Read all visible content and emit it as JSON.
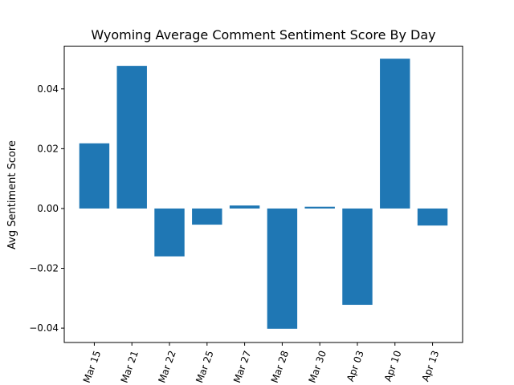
{
  "chart_data": {
    "type": "bar",
    "title": "Wyoming Average Comment Sentiment Score By Day",
    "xlabel": "",
    "ylabel": "Avg Sentiment Score",
    "categories": [
      "Mar 15",
      "Mar 21",
      "Mar 22",
      "Mar 25",
      "Mar 27",
      "Mar 28",
      "Mar 30",
      "Apr 03",
      "Apr 10",
      "Apr 13"
    ],
    "values": [
      0.0218,
      0.0477,
      -0.016,
      -0.0054,
      0.001,
      -0.0402,
      0.0006,
      -0.0322,
      0.0501,
      -0.0057
    ],
    "ylim": [
      -0.0448,
      0.0543
    ],
    "yticks": [
      -0.04,
      -0.02,
      0.0,
      0.02,
      0.04
    ],
    "ytick_labels": [
      "−0.04",
      "−0.02",
      "0.00",
      "0.02",
      "0.04"
    ],
    "bar_color": "#1f77b4",
    "grid": false,
    "legend": "none"
  }
}
